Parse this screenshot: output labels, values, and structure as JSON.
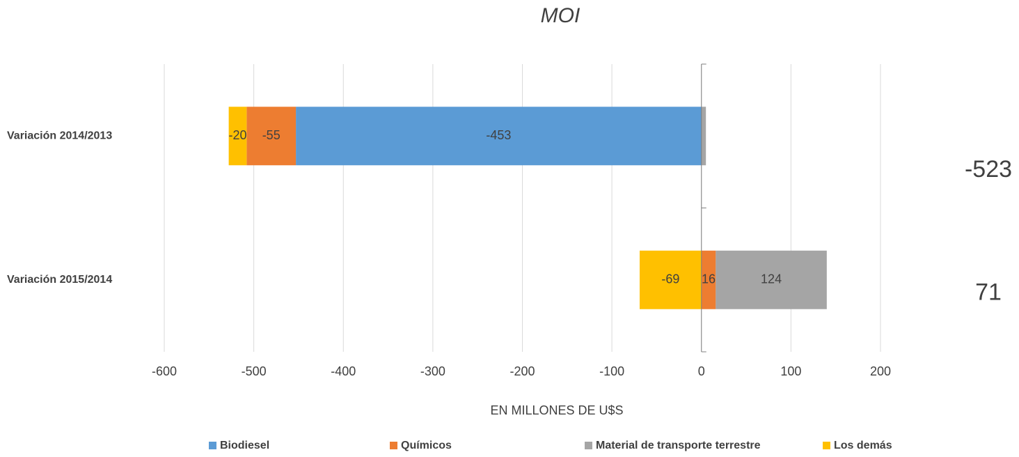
{
  "chart_data": {
    "type": "stacked_barh",
    "title": "MOI",
    "xlabel": "EN MILLONES DE U$S",
    "categories": [
      "Variación 2014/2013",
      "Variación 2015/2014"
    ],
    "series": [
      {
        "name": "Biodiesel",
        "color": "#5b9bd5",
        "values": [
          -453,
          0
        ],
        "value_labels": [
          "-453",
          null
        ]
      },
      {
        "name": "Químicos",
        "color": "#ed7d31",
        "values": [
          -55,
          16
        ],
        "value_labels": [
          "-55",
          "16"
        ]
      },
      {
        "name": "Material de transporte terrestre",
        "color": "#a5a5a5",
        "values": [
          5,
          124
        ],
        "value_labels": [
          null,
          "124"
        ]
      },
      {
        "name": "Los demás",
        "color": "#ffc000",
        "values": [
          -20,
          -69
        ],
        "value_labels": [
          "-20",
          "-69"
        ]
      }
    ],
    "totals": [
      -523,
      71
    ],
    "xlim": [
      -600,
      200
    ],
    "xticks": [
      -600,
      -500,
      -400,
      -300,
      -200,
      -100,
      0,
      100,
      200
    ],
    "grid": true,
    "legend": "bottom"
  }
}
